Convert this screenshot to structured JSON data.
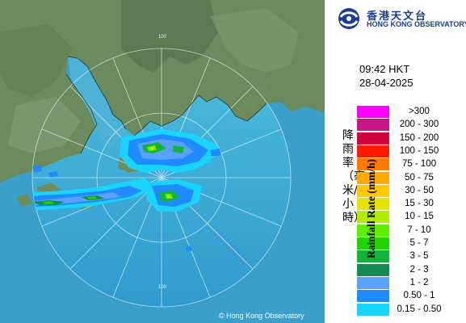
{
  "header": {
    "logo_zh": "香港天文台",
    "logo_en": "HONG KONG OBSERVATORY"
  },
  "timestamp": {
    "time": "09:42 HKT",
    "date": "28-04-2025"
  },
  "legend": {
    "title_zh": "降雨率（毫米/小時）",
    "title_en": "Rainfall Rate (mm/h)",
    "items": [
      {
        "label": ">300",
        "color": "#ff00ff"
      },
      {
        "label": "200 - 300",
        "color": "#c71585"
      },
      {
        "label": "150 - 200",
        "color": "#d0003c"
      },
      {
        "label": "100 - 150",
        "color": "#ff1a00"
      },
      {
        "label": "75 - 100",
        "color": "#ff7a00"
      },
      {
        "label": "50 - 75",
        "color": "#ffa800"
      },
      {
        "label": "30 - 50",
        "color": "#ffc800"
      },
      {
        "label": "15 - 30",
        "color": "#e4e400"
      },
      {
        "label": "10 - 15",
        "color": "#b0ec00"
      },
      {
        "label": "7 - 10",
        "color": "#5ff000"
      },
      {
        "label": "5 - 7",
        "color": "#22d400"
      },
      {
        "label": "3 - 5",
        "color": "#14b43c"
      },
      {
        "label": "2 - 3",
        "color": "#148c50"
      },
      {
        "label": "1 - 2",
        "color": "#5aa0ff"
      },
      {
        "label": "0.50 - 1",
        "color": "#1e8cff"
      },
      {
        "label": "0.15 - 0.50",
        "color": "#18d4ff"
      }
    ]
  },
  "map": {
    "range_rings": [
      "100",
      "100"
    ],
    "copyright": "© Hong Kong Observatory"
  }
}
